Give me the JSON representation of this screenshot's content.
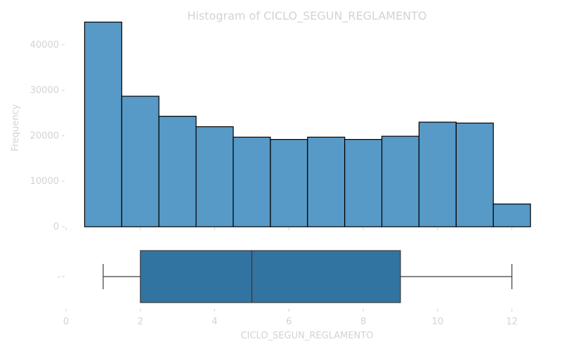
{
  "chart_data": {
    "type": "bar",
    "title": "Histogram of CICLO_SEGUN_REGLAMENTO",
    "xlabel": "CICLO_SEGUN_REGLAMENTO",
    "ylabel": "Frequency",
    "xlim": [
      0,
      12.8
    ],
    "ylim": [
      0,
      46000
    ],
    "x_ticks": [
      0,
      2,
      4,
      6,
      8,
      10,
      12
    ],
    "y_ticks": [
      0,
      10000,
      20000,
      30000,
      40000
    ],
    "bins": [
      {
        "x0": 0.5,
        "x1": 1.5,
        "value": 45000
      },
      {
        "x0": 1.5,
        "x1": 2.5,
        "value": 28700
      },
      {
        "x0": 2.5,
        "x1": 3.5,
        "value": 24300
      },
      {
        "x0": 3.5,
        "x1": 4.5,
        "value": 22000
      },
      {
        "x0": 4.5,
        "x1": 5.5,
        "value": 19700
      },
      {
        "x0": 5.5,
        "x1": 6.5,
        "value": 19200
      },
      {
        "x0": 6.5,
        "x1": 7.5,
        "value": 19700
      },
      {
        "x0": 7.5,
        "x1": 8.5,
        "value": 19200
      },
      {
        "x0": 8.5,
        "x1": 9.5,
        "value": 19900
      },
      {
        "x0": 9.5,
        "x1": 10.5,
        "value": 23000
      },
      {
        "x0": 10.5,
        "x1": 11.5,
        "value": 22800
      },
      {
        "x0": 11.5,
        "x1": 12.5,
        "value": 5000
      }
    ],
    "boxplot": {
      "min": 1,
      "q1": 2,
      "median": 5,
      "q3": 9,
      "max": 12,
      "y_tick_label": "-"
    },
    "colors": {
      "bar_fill": "#5799c7",
      "bar_edge": "#000000",
      "box_fill": "#3274a1",
      "box_edge": "#3d3d3d",
      "text": "#d3d3d3"
    }
  }
}
